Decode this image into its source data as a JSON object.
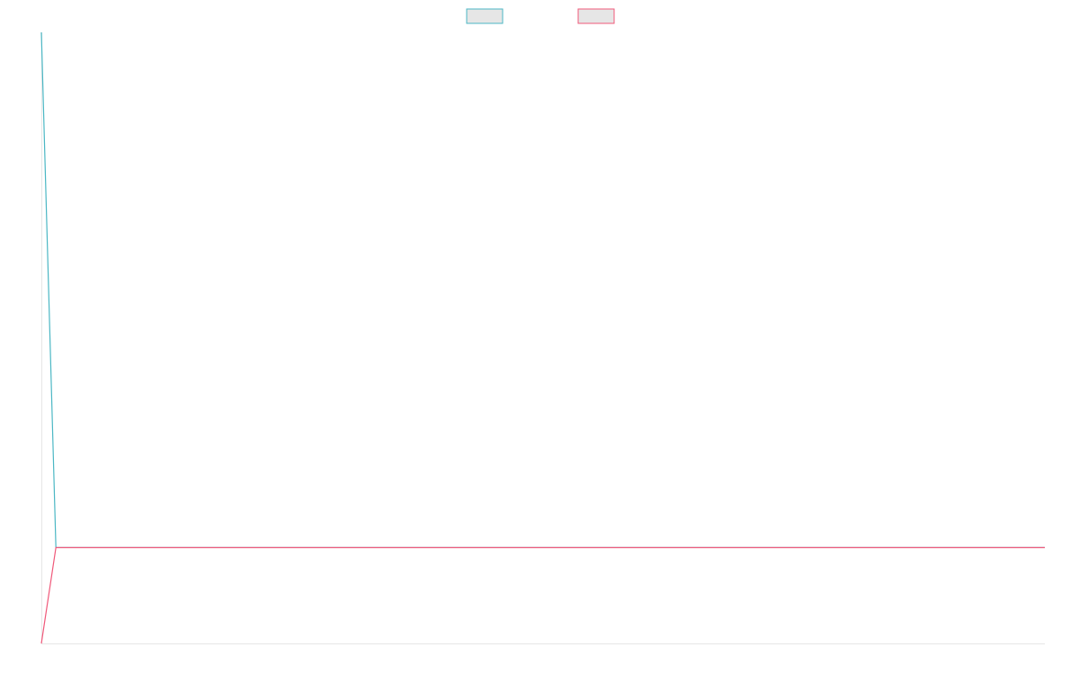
{
  "chart_data": {
    "type": "line",
    "title": "",
    "xlabel": "",
    "ylabel": "",
    "x": [
      0,
      1,
      2,
      3,
      4,
      5,
      6,
      7,
      8,
      9,
      10,
      11,
      12,
      13,
      14,
      15,
      16,
      17,
      18,
      19,
      20,
      21,
      22,
      23,
      24,
      25,
      26,
      27,
      28,
      29,
      30,
      31,
      32,
      33,
      34,
      35,
      36,
      37,
      38,
      39,
      40,
      41,
      42,
      43,
      44,
      45,
      46,
      47,
      48,
      49,
      50,
      51,
      52,
      53,
      54,
      55,
      56,
      57,
      58,
      59,
      60,
      61,
      62,
      63,
      64,
      65,
      66,
      67,
      68,
      69
    ],
    "series": [
      {
        "name": "",
        "color": "#4bb7c4",
        "values": [
          1.0,
          0.0,
          0.0,
          0.0,
          0.0,
          0.0,
          0.0,
          0.0,
          0.0,
          0.0,
          0.0,
          0.0,
          0.0,
          0.0,
          0.0,
          0.0,
          0.0,
          0.0,
          0.0,
          0.0,
          0.0,
          0.0,
          0.0,
          0.0,
          0.0,
          0.0,
          0.0,
          0.0,
          0.0,
          0.0,
          0.0,
          0.0,
          0.0,
          0.0,
          0.0,
          0.0,
          0.0,
          0.0,
          0.0,
          0.0,
          0.0,
          0.0,
          0.0,
          0.0,
          0.0,
          0.0,
          0.0,
          0.0,
          0.0,
          0.0,
          0.0,
          0.0,
          0.0,
          0.0,
          0.0,
          0.0,
          0.0,
          0.0,
          0.0,
          0.0,
          0.0,
          0.0,
          0.0,
          0.0,
          0.0,
          0.0,
          0.0,
          0.0,
          0.0,
          0.0
        ]
      },
      {
        "name": "",
        "color": "#f0597a",
        "values": [
          -0.186,
          0.0,
          0.0,
          0.0,
          0.0,
          0.0,
          0.0,
          0.0,
          0.0,
          0.0,
          0.0,
          0.0,
          0.0,
          0.0,
          0.0,
          0.0,
          0.0,
          0.0,
          0.0,
          0.0,
          0.0,
          0.0,
          0.0,
          0.0,
          0.0,
          0.0,
          0.0,
          0.0,
          0.0,
          0.0,
          0.0,
          0.0,
          0.0,
          0.0,
          0.0,
          0.0,
          0.0,
          0.0,
          0.0,
          0.0,
          0.0,
          0.0,
          0.0,
          0.0,
          0.0,
          0.0,
          0.0,
          0.0,
          0.0,
          0.0,
          0.0,
          0.0,
          0.0,
          0.0,
          0.0,
          0.0,
          0.0,
          0.0,
          0.0,
          0.0,
          0.0,
          0.0,
          0.0,
          0.0,
          0.0,
          0.0,
          0.0,
          0.0,
          0.0,
          0.0
        ]
      }
    ],
    "xlim": [
      0,
      69
    ],
    "ylim": [
      -0.186,
      1.0
    ],
    "grid": false,
    "legend": "top-center"
  }
}
